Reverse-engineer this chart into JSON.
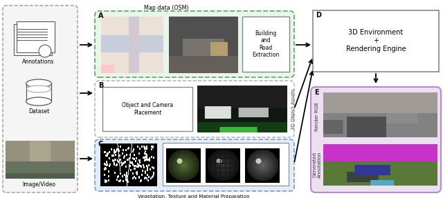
{
  "bg": "#ffffff",
  "fw": 6.4,
  "fh": 2.87,
  "annotations_text": "Annotations",
  "dataset_text": "Dataset",
  "imagevideo_text": "Image/Video",
  "map_osm_text": "Map data (OSM)",
  "label_A": "A",
  "label_B": "B",
  "label_C": "C",
  "label_D": "D",
  "label_E": "E",
  "build_road_text": "Building\nand\nRoad\nExtraction",
  "obj_cam_text": "Object and Camera\nPlacement",
  "env_render_text": "3D Environment\n+\nRendering Engine",
  "vegetation_footer": "Vegetation, Texture and Material Preparation",
  "render_rgb_text": "Render RGB",
  "gen_ann_text": "Generated\nAnnotation",
  "side_label_B": "3D Object Assets",
  "left_box_fc": "#f5f5f5",
  "left_box_ec": "#999999",
  "box_A_fc": "#e8f5e9",
  "box_A_ec": "#66aa66",
  "box_B_fc": "#ffffff",
  "box_B_ec": "#aaaaaa",
  "box_C_fc": "#e3edf9",
  "box_C_ec": "#7799cc",
  "box_D_fc": "#ffffff",
  "box_D_ec": "#888888",
  "box_E_fc": "#ecdff0",
  "box_E_ec": "#bb88cc"
}
